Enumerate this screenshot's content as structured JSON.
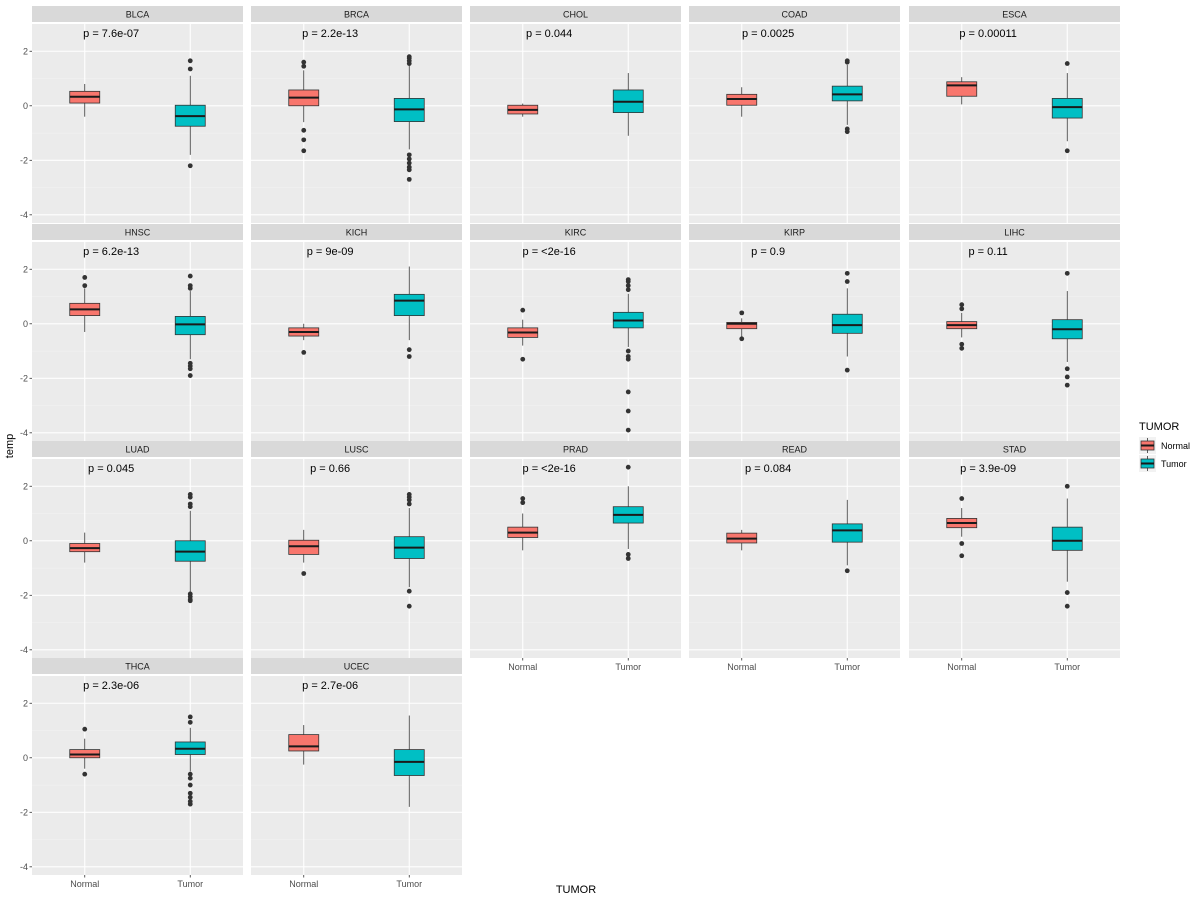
{
  "chart_data": {
    "type": "boxplot",
    "x_title": "TUMOR",
    "y_title": "temp",
    "ylim": [
      -4.3,
      3.0
    ],
    "y_ticks": [
      -4,
      -2,
      0,
      2
    ],
    "x_categories": [
      "Normal",
      "Tumor"
    ],
    "legend": {
      "title": "TUMOR",
      "position": "right",
      "entries": [
        {
          "label": "Normal",
          "color": "#F8766D"
        },
        {
          "label": "Tumor",
          "color": "#00BFC4"
        }
      ]
    },
    "panels": [
      {
        "name": "BLCA",
        "pvalue": "p = 7.6e-07",
        "normal": {
          "lw": -0.4,
          "q1": 0.1,
          "med": 0.33,
          "q3": 0.53,
          "uw": 0.8,
          "out": []
        },
        "tumor": {
          "lw": -1.8,
          "q1": -0.75,
          "med": -0.38,
          "q3": 0.02,
          "uw": 1.1,
          "out": [
            -2.2,
            1.35,
            1.65
          ]
        }
      },
      {
        "name": "BRCA",
        "pvalue": "p = 2.2e-13",
        "normal": {
          "lw": -0.6,
          "q1": 0.0,
          "med": 0.3,
          "q3": 0.58,
          "uw": 1.3,
          "out": [
            -0.9,
            -1.25,
            -1.65,
            1.45,
            1.6
          ]
        },
        "tumor": {
          "lw": -1.6,
          "q1": -0.58,
          "med": -0.13,
          "q3": 0.27,
          "uw": 1.5,
          "out": [
            -1.8,
            -1.95,
            -2.1,
            -2.25,
            -2.35,
            -2.7,
            1.55,
            1.65,
            1.75,
            1.8
          ]
        }
      },
      {
        "name": "CHOL",
        "pvalue": "p = 0.044",
        "normal": {
          "lw": -0.4,
          "q1": -0.3,
          "med": -0.15,
          "q3": 0.02,
          "uw": 0.08,
          "out": []
        },
        "tumor": {
          "lw": -1.1,
          "q1": -0.25,
          "med": 0.15,
          "q3": 0.58,
          "uw": 1.2,
          "out": []
        }
      },
      {
        "name": "COAD",
        "pvalue": "p = 0.0025",
        "normal": {
          "lw": -0.4,
          "q1": 0.02,
          "med": 0.25,
          "q3": 0.42,
          "uw": 0.68,
          "out": []
        },
        "tumor": {
          "lw": -0.7,
          "q1": 0.18,
          "med": 0.42,
          "q3": 0.72,
          "uw": 1.5,
          "out": [
            -0.85,
            -0.95,
            1.6,
            1.65
          ]
        }
      },
      {
        "name": "ESCA",
        "pvalue": "p = 0.00011",
        "normal": {
          "lw": 0.05,
          "q1": 0.35,
          "med": 0.75,
          "q3": 0.88,
          "uw": 1.05,
          "out": []
        },
        "tumor": {
          "lw": -1.3,
          "q1": -0.45,
          "med": -0.05,
          "q3": 0.27,
          "uw": 1.2,
          "out": [
            -1.65,
            1.55
          ]
        }
      },
      {
        "name": "HNSC",
        "pvalue": "p = 6.2e-13",
        "normal": {
          "lw": -0.3,
          "q1": 0.3,
          "med": 0.53,
          "q3": 0.75,
          "uw": 1.3,
          "out": [
            1.4,
            1.7
          ]
        },
        "tumor": {
          "lw": -1.3,
          "q1": -0.4,
          "med": -0.02,
          "q3": 0.27,
          "uw": 1.2,
          "out": [
            -1.45,
            -1.55,
            -1.65,
            -1.9,
            1.3,
            1.4,
            1.75
          ]
        }
      },
      {
        "name": "KICH",
        "pvalue": "p = 9e-09",
        "normal": {
          "lw": -0.6,
          "q1": -0.45,
          "med": -0.3,
          "q3": -0.15,
          "uw": 0.0,
          "out": [
            -1.05
          ]
        },
        "tumor": {
          "lw": -0.6,
          "q1": 0.3,
          "med": 0.85,
          "q3": 1.08,
          "uw": 2.1,
          "out": [
            -0.95,
            -1.2
          ]
        }
      },
      {
        "name": "KIRC",
        "pvalue": "p = <2e-16",
        "normal": {
          "lw": -0.8,
          "q1": -0.5,
          "med": -0.32,
          "q3": -0.15,
          "uw": 0.15,
          "out": [
            0.5,
            -1.3
          ]
        },
        "tumor": {
          "lw": -0.85,
          "q1": -0.15,
          "med": 0.12,
          "q3": 0.42,
          "uw": 1.1,
          "out": [
            -1.0,
            -1.2,
            -1.3,
            -2.5,
            -3.2,
            -3.9,
            1.25,
            1.4,
            1.55,
            1.62
          ]
        }
      },
      {
        "name": "KIRP",
        "pvalue": "p = 0.9",
        "normal": {
          "lw": -0.5,
          "q1": -0.18,
          "med": 0.0,
          "q3": 0.05,
          "uw": 0.2,
          "out": [
            0.4,
            -0.55
          ]
        },
        "tumor": {
          "lw": -1.2,
          "q1": -0.35,
          "med": -0.05,
          "q3": 0.35,
          "uw": 1.3,
          "out": [
            -1.7,
            1.55,
            1.85
          ]
        }
      },
      {
        "name": "LIHC",
        "pvalue": "p = 0.11",
        "normal": {
          "lw": -0.5,
          "q1": -0.18,
          "med": -0.05,
          "q3": 0.08,
          "uw": 0.4,
          "out": [
            0.55,
            0.7,
            -0.75,
            -0.9
          ]
        },
        "tumor": {
          "lw": -1.4,
          "q1": -0.55,
          "med": -0.2,
          "q3": 0.15,
          "uw": 1.2,
          "out": [
            -1.65,
            -1.95,
            -2.25,
            1.85
          ]
        }
      },
      {
        "name": "LUAD",
        "pvalue": "p = 0.045",
        "normal": {
          "lw": -0.8,
          "q1": -0.4,
          "med": -0.27,
          "q3": -0.1,
          "uw": 0.3,
          "out": []
        },
        "tumor": {
          "lw": -1.9,
          "q1": -0.75,
          "med": -0.4,
          "q3": 0.0,
          "uw": 1.1,
          "out": [
            -1.95,
            -2.05,
            -2.15,
            -2.2,
            1.25,
            1.35,
            1.6,
            1.7
          ]
        }
      },
      {
        "name": "LUSC",
        "pvalue": "p = 0.66",
        "normal": {
          "lw": -0.8,
          "q1": -0.5,
          "med": -0.2,
          "q3": 0.02,
          "uw": 0.4,
          "out": [
            -1.2
          ]
        },
        "tumor": {
          "lw": -1.7,
          "q1": -0.65,
          "med": -0.25,
          "q3": 0.15,
          "uw": 1.2,
          "out": [
            -1.85,
            -2.4,
            1.35,
            1.5,
            1.6,
            1.7
          ]
        }
      },
      {
        "name": "PRAD",
        "pvalue": "p = <2e-16",
        "normal": {
          "lw": -0.35,
          "q1": 0.12,
          "med": 0.3,
          "q3": 0.5,
          "uw": 1.0,
          "out": [
            1.4,
            1.55
          ]
        },
        "tumor": {
          "lw": -0.3,
          "q1": 0.65,
          "med": 0.95,
          "q3": 1.25,
          "uw": 2.0,
          "out": [
            -0.5,
            -0.65,
            2.7
          ]
        }
      },
      {
        "name": "READ",
        "pvalue": "p = 0.084",
        "normal": {
          "lw": -0.35,
          "q1": -0.08,
          "med": 0.08,
          "q3": 0.28,
          "uw": 0.4,
          "out": []
        },
        "tumor": {
          "lw": -0.9,
          "q1": -0.05,
          "med": 0.38,
          "q3": 0.62,
          "uw": 1.5,
          "out": [
            -1.1
          ]
        }
      },
      {
        "name": "STAD",
        "pvalue": "p = 3.9e-09",
        "normal": {
          "lw": 0.15,
          "q1": 0.48,
          "med": 0.65,
          "q3": 0.82,
          "uw": 1.2,
          "out": [
            1.55,
            -0.1,
            -0.55
          ]
        },
        "tumor": {
          "lw": -1.5,
          "q1": -0.35,
          "med": 0.0,
          "q3": 0.5,
          "uw": 1.55,
          "out": [
            -1.9,
            -2.4,
            2.0
          ]
        }
      },
      {
        "name": "THCA",
        "pvalue": "p = 2.3e-06",
        "normal": {
          "lw": -0.4,
          "q1": 0.0,
          "med": 0.12,
          "q3": 0.3,
          "uw": 0.7,
          "out": [
            1.05,
            -0.6
          ]
        },
        "tumor": {
          "lw": -0.5,
          "q1": 0.12,
          "med": 0.33,
          "q3": 0.58,
          "uw": 1.1,
          "out": [
            1.3,
            1.5,
            -0.6,
            -0.75,
            -1.0,
            -1.3,
            -1.45,
            -1.6,
            -1.7
          ]
        }
      },
      {
        "name": "UCEC",
        "pvalue": "p = 2.7e-06",
        "normal": {
          "lw": -0.25,
          "q1": 0.25,
          "med": 0.42,
          "q3": 0.85,
          "uw": 1.2,
          "out": []
        },
        "tumor": {
          "lw": -1.8,
          "q1": -0.65,
          "med": -0.15,
          "q3": 0.3,
          "uw": 1.55,
          "out": []
        }
      }
    ]
  }
}
